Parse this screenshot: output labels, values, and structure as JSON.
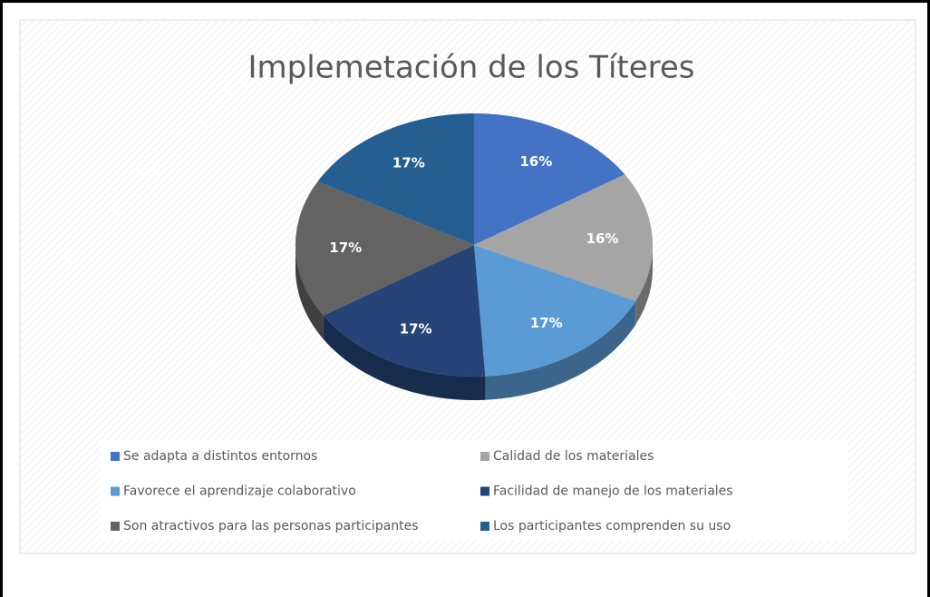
{
  "chart_data": {
    "type": "pie",
    "title": "Implemetación de los Títeres",
    "categories": [
      "Se adapta a distintos entornos",
      "Calidad de los materiales",
      "Favorece el aprendizaje colaborativo",
      "Facilidad de manejo de los materiales",
      "Son atractivos para las personas participantes",
      "Los participantes comprenden su uso"
    ],
    "values": [
      16,
      16,
      17,
      17,
      17,
      17
    ],
    "value_labels": [
      "16%",
      "16%",
      "17%",
      "17%",
      "17%",
      "17%"
    ],
    "colors": [
      "#4472c4",
      "#a5a5a5",
      "#5b9bd5",
      "#264478",
      "#636363",
      "#255e91"
    ],
    "legend": "bottom"
  }
}
